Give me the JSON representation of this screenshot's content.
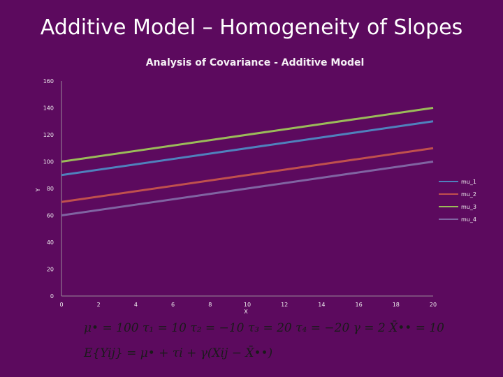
{
  "slide_title": "Additive Model – Homogeneity of Slopes",
  "chart_data": {
    "type": "line",
    "title": "Analysis of Covariance - Additive Model",
    "xlabel": "X",
    "ylabel": "Y",
    "xlim": [
      0,
      20
    ],
    "ylim": [
      0,
      160
    ],
    "x_ticks": [
      "0",
      "2",
      "4",
      "6",
      "8",
      "10",
      "12",
      "14",
      "16",
      "18",
      "20"
    ],
    "y_ticks": [
      "0",
      "20",
      "40",
      "60",
      "80",
      "100",
      "120",
      "140",
      "160"
    ],
    "grid": false,
    "legend_position": "right",
    "series": [
      {
        "name": "mu_1",
        "color": "#4f81bd",
        "x": [
          0,
          20
        ],
        "values": [
          90,
          130
        ]
      },
      {
        "name": "mu_2",
        "color": "#c0504d",
        "x": [
          0,
          20
        ],
        "values": [
          70,
          110
        ]
      },
      {
        "name": "mu_3",
        "color": "#9bbb59",
        "x": [
          0,
          20
        ],
        "values": [
          100,
          140
        ]
      },
      {
        "name": "mu_4",
        "color": "#8064a2",
        "x": [
          0,
          20
        ],
        "values": [
          60,
          100
        ]
      }
    ]
  },
  "equations": {
    "line1": "μ• = 100   τ₁ = 10   τ₂ = −10   τ₃ = 20   τ₄ = −20   γ = 2   X̄•• = 10",
    "line2": "E{Yij} = μ• + τi + γ(Xij − X̄••)"
  }
}
